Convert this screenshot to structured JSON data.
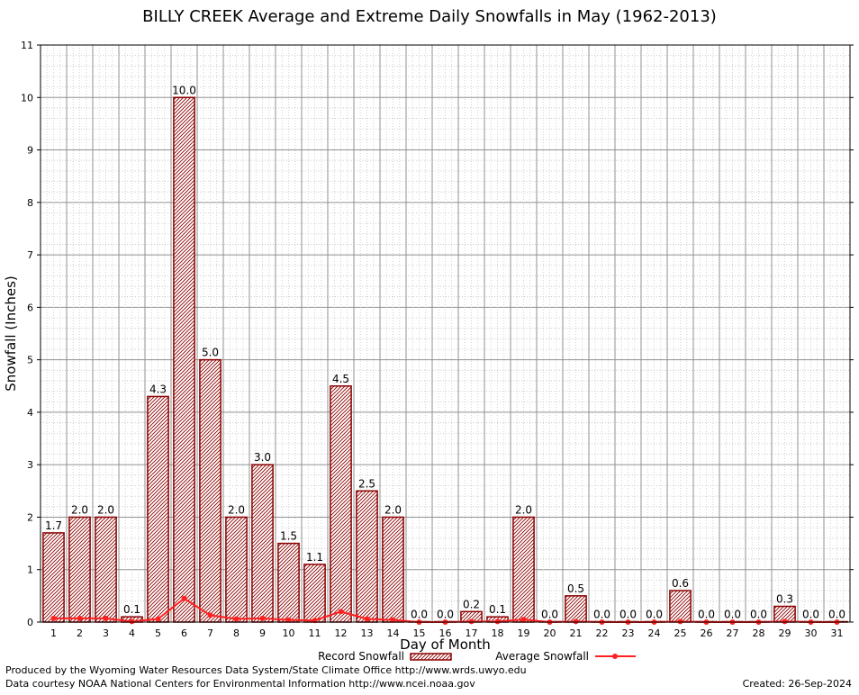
{
  "chart_data": {
    "type": "bar",
    "title": "BILLY CREEK Average and Extreme Daily Snowfalls in May (1962-2013)",
    "xlabel": "Day of Month",
    "ylabel": "Snowfall (Inches)",
    "ylim": [
      0,
      11
    ],
    "yticks": [
      "0",
      "1",
      "2",
      "3",
      "4",
      "5",
      "6",
      "7",
      "8",
      "9",
      "10",
      "11"
    ],
    "grid": true,
    "legend_position": "bottom-center",
    "categories": [
      "1",
      "2",
      "3",
      "4",
      "5",
      "6",
      "7",
      "8",
      "9",
      "10",
      "11",
      "12",
      "13",
      "14",
      "15",
      "16",
      "17",
      "18",
      "19",
      "20",
      "21",
      "22",
      "23",
      "24",
      "25",
      "26",
      "27",
      "28",
      "29",
      "30",
      "31"
    ],
    "series": [
      {
        "name": "Record Snowfall",
        "kind": "bar",
        "values": [
          1.7,
          2.0,
          2.0,
          0.1,
          4.3,
          10.0,
          5.0,
          2.0,
          3.0,
          1.5,
          1.1,
          4.5,
          2.5,
          2.0,
          0.0,
          0.0,
          0.2,
          0.1,
          2.0,
          0.0,
          0.5,
          0.0,
          0.0,
          0.0,
          0.6,
          0.0,
          0.0,
          0.0,
          0.3,
          0.0,
          0.0
        ],
        "labels": [
          "1.7",
          "2.0",
          "2.0",
          "0.1",
          "4.3",
          "10.0",
          "5.0",
          "2.0",
          "3.0",
          "1.5",
          "1.1",
          "4.5",
          "2.5",
          "2.0",
          "0.0",
          "0.0",
          "0.2",
          "0.1",
          "2.0",
          "0.0",
          "0.5",
          "0.0",
          "0.0",
          "0.0",
          "0.6",
          "0.0",
          "0.0",
          "0.0",
          "0.3",
          "0.0",
          "0.0"
        ]
      },
      {
        "name": "Average Snowfall",
        "kind": "line",
        "values": [
          0.07,
          0.07,
          0.07,
          0.01,
          0.06,
          0.45,
          0.13,
          0.06,
          0.07,
          0.04,
          0.03,
          0.2,
          0.06,
          0.04,
          0.0,
          0.0,
          0.01,
          0.01,
          0.05,
          0.0,
          0.01,
          0.0,
          0.0,
          0.0,
          0.01,
          0.0,
          0.0,
          0.0,
          0.01,
          0.0,
          0.0
        ]
      }
    ],
    "colors": {
      "bar_stroke": "#8b0000",
      "bar_fill": "#c8a0a0",
      "line": "#ff2020",
      "grid": "#a0a0a0"
    }
  },
  "footer": {
    "produced_by": "Produced by the Wyoming Water Resources Data System/State Climate Office http://www.wrds.uwyo.edu",
    "courtesy": "Data courtesy NOAA National Centers for Environmental Information http://www.ncei.noaa.gov",
    "created": "Created:  26-Sep-2024"
  }
}
